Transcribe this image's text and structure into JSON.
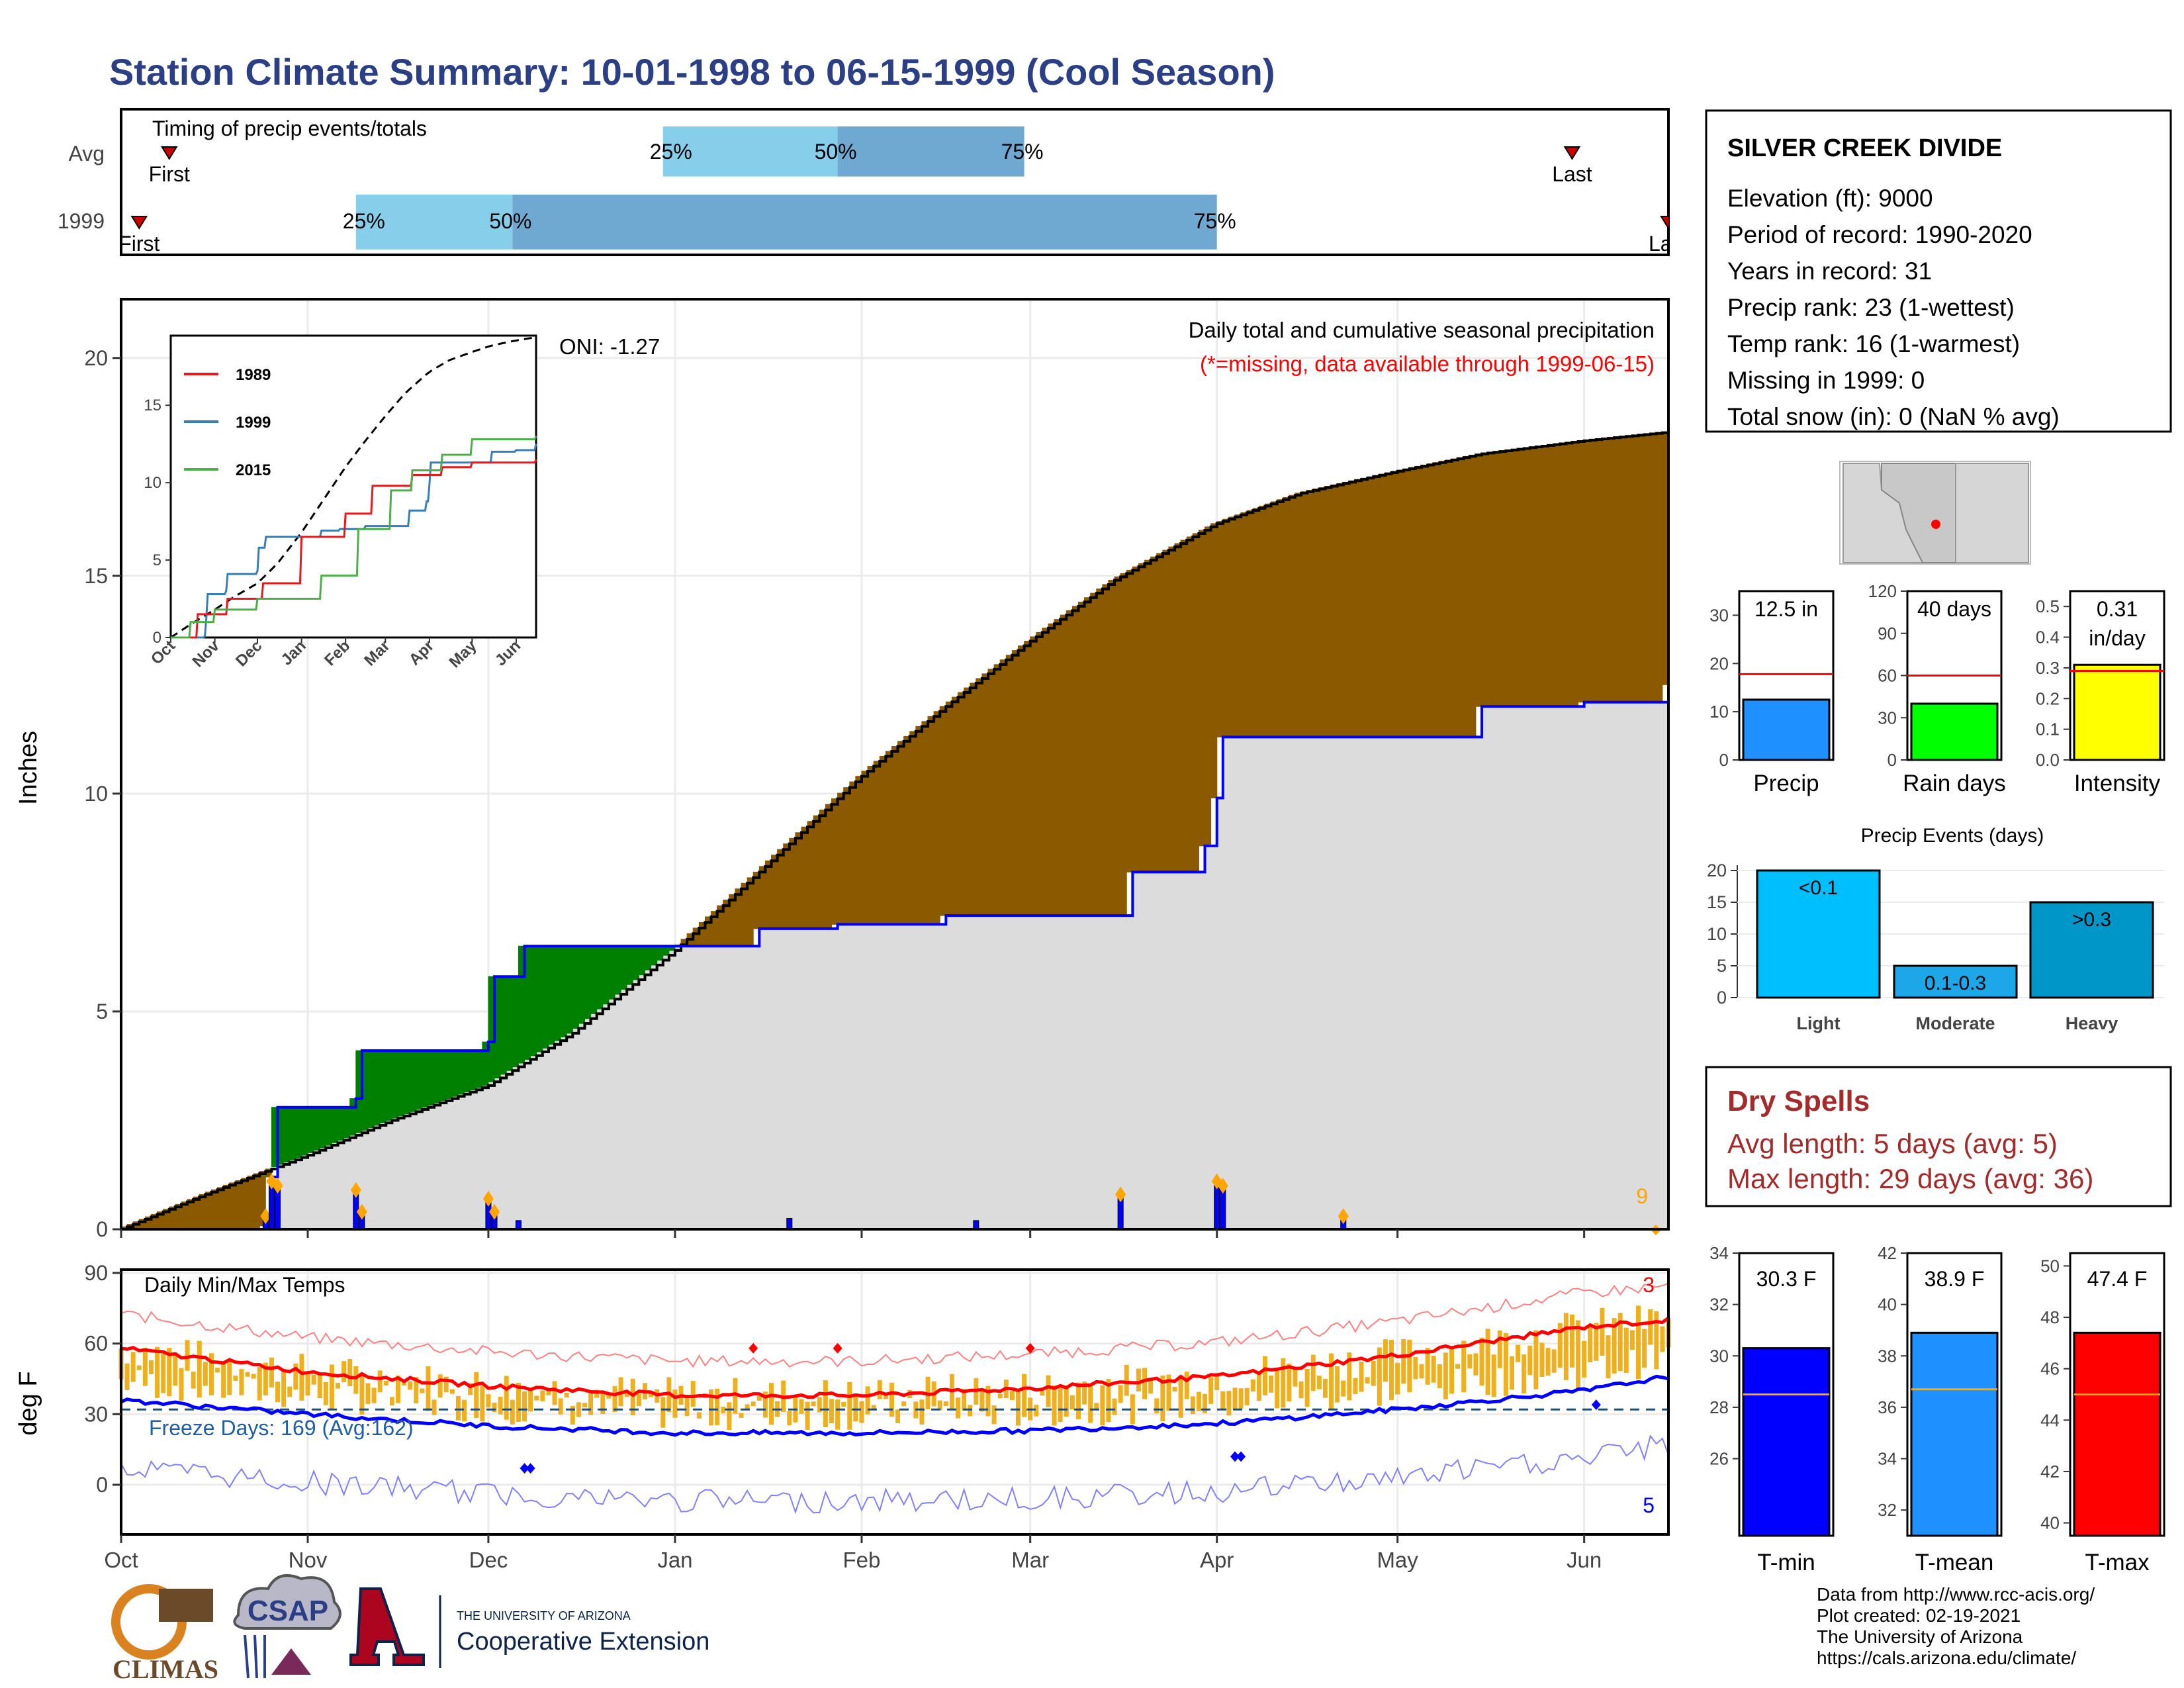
{
  "title": "Station Climate Summary: 10-01-1998 to 06-15-1999 (Cool Season)",
  "timing_panel": {
    "label": "Timing of precip events/totals",
    "rows": [
      {
        "name": "Avg",
        "first_label": "First",
        "first_date": "1998-10-09",
        "last_label": "Last",
        "last_date": "1999-05-30",
        "p25_label": "25%",
        "p25_date": "1998-12-30",
        "p50_label": "50%",
        "p50_date": "1999-01-28",
        "p75_label": "75%",
        "p75_date": "1999-02-28"
      },
      {
        "name": "1999",
        "first_label": "First",
        "first_date": "1998-10-04",
        "last_label": "Last",
        "last_date": "1999-06-15",
        "p25_label": "25%",
        "p25_date": "1998-11-09",
        "p50_label": "50%",
        "p50_date": "1998-12-05",
        "p75_label": "75%",
        "p75_date": "1999-04-01"
      }
    ],
    "colors": {
      "early": "#87ceeb",
      "late": "#6fa8d0",
      "marker": "#cc0000"
    }
  },
  "station": {
    "name": "SILVER CREEK DIVIDE",
    "lines": [
      "Elevation (ft): 9000",
      "Period of record: 1990-2020",
      "Years in record: 31",
      "Precip rank: 23 (1-wettest)",
      "Temp rank: 16 (1-warmest)",
      "Missing in 1999: 0",
      "Total snow (in): 0 (NaN % avg)"
    ]
  },
  "precip_panel": {
    "ylabel": "Inches",
    "header": "Daily total and cumulative seasonal precipitation",
    "missing_note": "(*=missing, data available through 1999-06-15)",
    "oni": "ONI: -1.27",
    "count_label": "9",
    "x_ticks": [
      "Oct",
      "Nov",
      "Dec",
      "Jan",
      "Feb",
      "Mar",
      "Apr",
      "May",
      "Jun"
    ],
    "y_ticks": [
      "0",
      "5",
      "10",
      "15",
      "20"
    ]
  },
  "inset": {
    "x_ticks": [
      "Oct",
      "Nov",
      "Dec",
      "Jan",
      "Feb",
      "Mar",
      "Apr",
      "May",
      "Jun"
    ],
    "y_ticks": [
      "0",
      "5",
      "10",
      "15"
    ],
    "legend": [
      {
        "name": "1989",
        "color": "#e41a1c"
      },
      {
        "name": "1999",
        "color": "#377eb8"
      },
      {
        "name": "2015",
        "color": "#4daf4a"
      }
    ]
  },
  "temp_panel": {
    "ylabel": "deg F",
    "header": "Daily Min/Max Temps",
    "freeze": "Freeze Days: 169 (Avg:162)",
    "max_count": "3",
    "min_count": "5",
    "y_ticks": [
      "0",
      "30",
      "60",
      "90"
    ],
    "x_ticks": [
      "Oct",
      "Nov",
      "Dec",
      "Jan",
      "Feb",
      "Mar",
      "Apr",
      "May",
      "Jun"
    ]
  },
  "mini_bars": [
    {
      "label": "Precip",
      "value_text": "12.5 in",
      "value": 12.5,
      "avg": 17.8,
      "ymax": 35,
      "ticks": [
        "0",
        "10",
        "20",
        "30"
      ],
      "color": "#1e90ff"
    },
    {
      "label": "Rain days",
      "value_text": "40 days",
      "value": 40,
      "avg": 60,
      "ymax": 120,
      "ticks": [
        "0",
        "30",
        "60",
        "90",
        "120"
      ],
      "color": "#00ff00"
    },
    {
      "label": "Intensity",
      "value_text": "0.31",
      "value_text2": "in/day",
      "value": 0.31,
      "avg": 0.29,
      "ymax": 0.55,
      "ticks": [
        "0.0",
        "0.1",
        "0.2",
        "0.3",
        "0.4",
        "0.5"
      ],
      "color": "#ffff00"
    }
  ],
  "precip_events": {
    "title": "Precip Events (days)",
    "ticks": [
      "0",
      "5",
      "10",
      "15",
      "20"
    ],
    "bars": [
      {
        "label": "Light",
        "value": 20,
        "text": "<0.1",
        "color": "#00bfff"
      },
      {
        "label": "Moderate",
        "value": 5,
        "text": "0.1-0.3",
        "color": "#1ea7e8"
      },
      {
        "label": "Heavy",
        "value": 15,
        "text": ">0.3",
        "color": "#0096c8"
      }
    ]
  },
  "dry_spells": {
    "title": "Dry Spells",
    "line1": "Avg length: 5 days (avg: 5)",
    "line2": "Max length: 29 days (avg: 36)"
  },
  "temp_bars": [
    {
      "label": "T-min",
      "value_text": "30.3 F",
      "value": 30.3,
      "avg": 28.5,
      "ymin": 23,
      "ymax": 34,
      "ticks": [
        "26",
        "28",
        "30",
        "32",
        "34"
      ],
      "color": "#0000ff"
    },
    {
      "label": "T-mean",
      "value_text": "38.9 F",
      "value": 38.9,
      "avg": 36.7,
      "ymin": 31,
      "ymax": 42,
      "ticks": [
        "32",
        "34",
        "36",
        "38",
        "40",
        "42"
      ],
      "color": "#1e90ff"
    },
    {
      "label": "T-max",
      "value_text": "47.4 F",
      "value": 47.4,
      "avg": 45.0,
      "ymin": 39.5,
      "ymax": 50.5,
      "ticks": [
        "40",
        "42",
        "44",
        "46",
        "48",
        "50"
      ],
      "color": "#ff0000"
    }
  ],
  "credits": {
    "lines": [
      "Data from http://www.rcc-acis.org/",
      "Plot created: 02-19-2021",
      "The University of Arizona",
      "https://cals.arizona.edu/climate/"
    ],
    "logo1": "CLIMAS",
    "logo2": "CSAP",
    "logo3_small": "THE UNIVERSITY OF ARIZONA",
    "logo3_big": "Cooperative Extension"
  },
  "chart_data": {
    "type": "area",
    "title": "Daily total and cumulative seasonal precipitation",
    "ylabel": "Inches",
    "x_start": "1998-10-01",
    "x_end": "1999-06-15",
    "ylim": [
      0,
      20
    ],
    "series": [
      {
        "name": "avg",
        "x": [
          "1998-10-01",
          "1998-10-15",
          "1998-11-01",
          "1998-11-15",
          "1998-12-01",
          "1998-12-15",
          "1999-01-01",
          "1999-01-15",
          "1999-02-01",
          "1999-02-15",
          "1999-03-01",
          "1999-03-15",
          "1999-04-01",
          "1999-04-15",
          "1999-05-01",
          "1999-05-15",
          "1999-06-01",
          "1999-06-15"
        ],
        "values": [
          0,
          0.8,
          1.7,
          2.5,
          3.3,
          4.5,
          6.4,
          8.2,
          10.4,
          12.0,
          13.5,
          14.9,
          16.2,
          16.9,
          17.4,
          17.8,
          18.1,
          18.3
        ]
      },
      {
        "name": "1999",
        "x": [
          "1998-10-01",
          "1998-10-25",
          "1998-10-26",
          "1998-10-27",
          "1998-11-09",
          "1998-11-10",
          "1998-12-01",
          "1998-12-02",
          "1998-12-07",
          "1999-01-15",
          "1999-01-28",
          "1999-02-15",
          "1999-03-18",
          "1999-03-30",
          "1999-04-01",
          "1999-04-02",
          "1999-05-15",
          "1999-06-01",
          "1999-06-15"
        ],
        "values": [
          0,
          0.08,
          1.2,
          2.8,
          3.0,
          4.1,
          4.3,
          5.8,
          6.5,
          6.9,
          7.0,
          7.2,
          8.2,
          8.8,
          9.9,
          11.3,
          12.0,
          12.1,
          12.5
        ]
      }
    ],
    "daily_precip": {
      "x": [
        "1998-10-25",
        "1998-10-26",
        "1998-10-27",
        "1998-11-09",
        "1998-11-10",
        "1998-12-01",
        "1998-12-02",
        "1998-12-06",
        "1999-01-20",
        "1999-02-20",
        "1999-04-01",
        "1999-04-02",
        "1999-03-16",
        "1999-04-22"
      ],
      "values": [
        0.3,
        1.1,
        1.0,
        0.9,
        0.4,
        0.7,
        0.4,
        0.2,
        0.25,
        0.2,
        1.1,
        1.0,
        0.8,
        0.3
      ]
    },
    "temps": {
      "type": "line",
      "ylim": [
        -15,
        90
      ],
      "series": [
        {
          "name": "avg max",
          "x": [
            "1998-10-01",
            "1998-11-01",
            "1998-12-01",
            "1999-01-01",
            "1999-02-01",
            "1999-03-01",
            "1999-04-01",
            "1999-05-01",
            "1999-06-01",
            "1999-06-15"
          ],
          "values": [
            58,
            48,
            42,
            38,
            38,
            41,
            46,
            55,
            67,
            70
          ]
        },
        {
          "name": "avg min",
          "x": [
            "1998-10-01",
            "1998-11-01",
            "1998-12-01",
            "1999-01-01",
            "1999-02-01",
            "1999-03-01",
            "1999-04-01",
            "1999-05-01",
            "1999-06-01",
            "1999-06-15"
          ],
          "values": [
            36,
            30,
            25,
            22,
            22,
            23,
            26,
            32,
            40,
            46
          ]
        }
      ]
    }
  }
}
